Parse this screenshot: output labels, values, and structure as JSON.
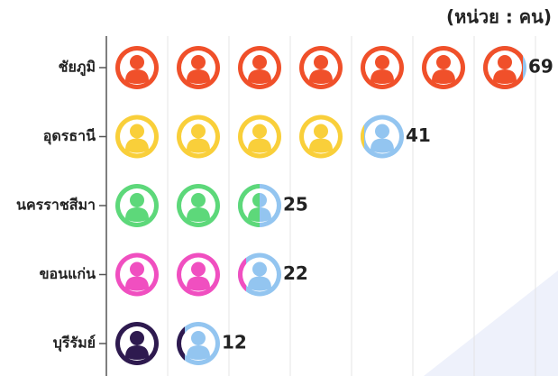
{
  "chart_data": {
    "type": "pictogram",
    "subtitle": "(หน่วย : คน)",
    "categories": [
      "ชัยภูมิ",
      "อุดรธานี",
      "นครราชสีมา",
      "ขอนแก่น",
      "บุรีรัมย์"
    ],
    "values": [
      69,
      41,
      25,
      22,
      12
    ],
    "colors": [
      "#f0502a",
      "#f9cf3a",
      "#5dd87a",
      "#f04fc0",
      "#2e1a4f"
    ],
    "remainder_color": "#93c5f0",
    "xlim": [
      0,
      70
    ],
    "xticks": [
      0,
      10,
      20,
      30,
      40,
      50,
      60,
      70
    ],
    "grid": true
  }
}
